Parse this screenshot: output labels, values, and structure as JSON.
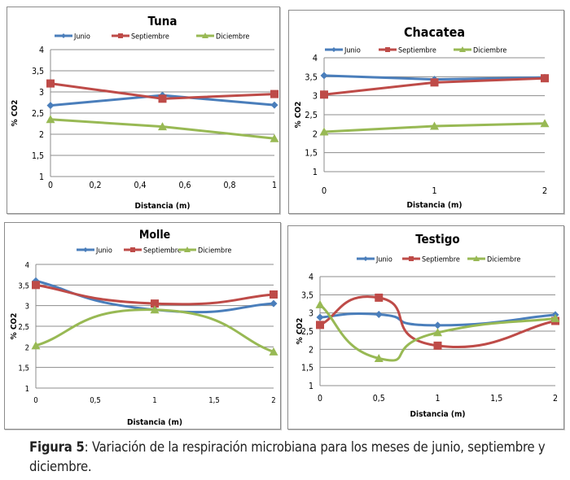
{
  "colors": {
    "junio": "#4a7ebb",
    "septiembre": "#be4b48",
    "diciembre": "#98b954",
    "grid": "#8c8c8c",
    "text": "#000000"
  },
  "caption": {
    "label": "Figura 5",
    "text": ": Variación de la respiración microbiana para los meses de junio, septiembre y diciembre."
  },
  "chart_data": [
    {
      "id": "tuna",
      "type": "line",
      "title": "Tuna",
      "xlabel": "Distancia (m)",
      "ylabel": "% CO2",
      "smooth": false,
      "x": [
        0,
        0.5,
        1
      ],
      "xlim": [
        0,
        1
      ],
      "xticks": [
        0,
        0.2,
        0.4,
        0.6,
        0.8,
        1
      ],
      "xtick_labels": [
        "0",
        "0,2",
        "0,4",
        "0,6",
        "0,8",
        "1"
      ],
      "ylim": [
        1,
        4
      ],
      "yticks": [
        1,
        1.5,
        2,
        2.5,
        3,
        3.5,
        4
      ],
      "ytick_labels": [
        "1",
        "1,5",
        "2",
        "2,5",
        "3",
        "3,5",
        "4"
      ],
      "grid": true,
      "legend": "top",
      "series": [
        {
          "name": "Junio",
          "marker": "diamond",
          "values": [
            2.68,
            2.92,
            2.69
          ]
        },
        {
          "name": "Septiembre",
          "marker": "square",
          "values": [
            3.2,
            2.84,
            2.95
          ]
        },
        {
          "name": "Diciembre",
          "marker": "triangle",
          "values": [
            2.35,
            2.18,
            1.9
          ]
        }
      ]
    },
    {
      "id": "chacatea",
      "type": "line",
      "title": "Chacatea",
      "xlabel": "Distancia (m)",
      "ylabel": "% CO2",
      "smooth": false,
      "x": [
        0,
        1,
        2
      ],
      "xlim": [
        0,
        2
      ],
      "xticks": [
        0,
        1,
        2
      ],
      "xtick_labels": [
        "0",
        "1",
        "2"
      ],
      "ylim": [
        1,
        4
      ],
      "yticks": [
        1,
        1.5,
        2,
        2.5,
        3,
        3.5,
        4
      ],
      "ytick_labels": [
        "1",
        "1,5",
        "2",
        "2,5",
        "3",
        "3,5",
        "4"
      ],
      "grid": true,
      "legend": "top",
      "series": [
        {
          "name": "Junio",
          "marker": "diamond",
          "values": [
            3.53,
            3.43,
            3.48
          ]
        },
        {
          "name": "Septiembre",
          "marker": "square",
          "values": [
            3.03,
            3.35,
            3.46
          ]
        },
        {
          "name": "Diciembre",
          "marker": "triangle",
          "values": [
            2.05,
            2.2,
            2.27
          ]
        }
      ]
    },
    {
      "id": "molle",
      "type": "line",
      "title": "Molle",
      "xlabel": "Distancia (m)",
      "ylabel": "% CO2",
      "smooth": true,
      "x": [
        0,
        1,
        2
      ],
      "xlim": [
        0,
        2
      ],
      "xticks": [
        0,
        0.5,
        1,
        1.5,
        2
      ],
      "xtick_labels": [
        "0",
        "0,5",
        "1",
        "1,5",
        "2"
      ],
      "ylim": [
        1,
        4
      ],
      "yticks": [
        1,
        1.5,
        2,
        2.5,
        3,
        3.5,
        4
      ],
      "ytick_labels": [
        "1",
        "1,5",
        "2",
        "2,5",
        "3",
        "3,5",
        "4"
      ],
      "grid": true,
      "legend": "top",
      "series": [
        {
          "name": "Junio",
          "marker": "diamond",
          "values": [
            3.6,
            2.9,
            3.05
          ]
        },
        {
          "name": "Septiembre",
          "marker": "square",
          "values": [
            3.5,
            3.05,
            3.27
          ]
        },
        {
          "name": "Diciembre",
          "marker": "triangle",
          "values": [
            2.03,
            2.9,
            1.88
          ]
        }
      ]
    },
    {
      "id": "testigo",
      "type": "line",
      "title": "Testigo",
      "xlabel": "Distancia (m)",
      "ylabel": "% CO2",
      "smooth": true,
      "x": [
        0,
        0.5,
        1,
        2
      ],
      "xlim": [
        0,
        2
      ],
      "xticks": [
        0,
        0.5,
        1,
        1.5,
        2
      ],
      "xtick_labels": [
        "0",
        "0,5",
        "1",
        "1,5",
        "2"
      ],
      "ylim": [
        1,
        4
      ],
      "yticks": [
        1,
        1.5,
        2,
        2.5,
        3,
        3.5,
        4
      ],
      "ytick_labels": [
        "1",
        "1,5",
        "2",
        "2,5",
        "3",
        "3,5",
        "4"
      ],
      "grid": true,
      "legend": "top",
      "series": [
        {
          "name": "Junio",
          "marker": "diamond",
          "values": [
            2.88,
            2.96,
            2.66,
            2.95
          ]
        },
        {
          "name": "Septiembre",
          "marker": "square",
          "values": [
            2.67,
            3.42,
            2.1,
            2.78
          ]
        },
        {
          "name": "Diciembre",
          "marker": "triangle",
          "values": [
            3.23,
            1.75,
            2.46,
            2.85
          ]
        }
      ]
    }
  ]
}
